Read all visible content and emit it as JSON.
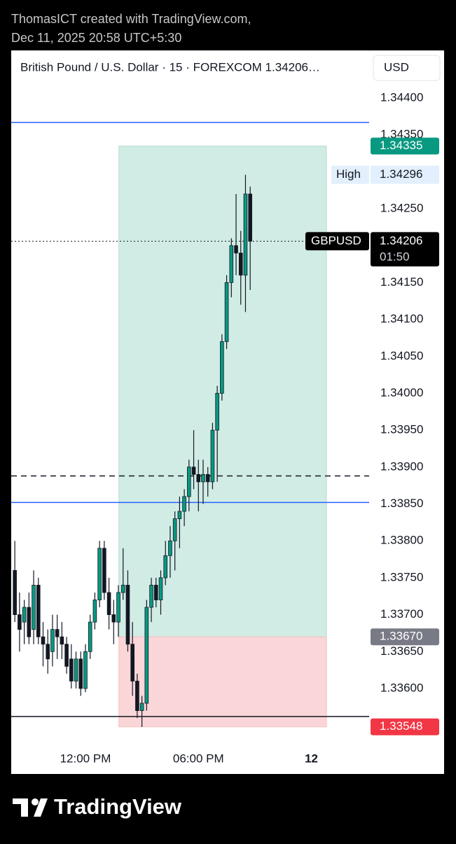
{
  "header": {
    "author_line": "ThomasICT created with TradingView.com,",
    "date_line": "Dec 11, 2025 20:58 UTC+5:30"
  },
  "chart_data": {
    "type": "candlestick",
    "title": "British Pound / U.S. Dollar · 15 · FOREXCOM  1.34206…",
    "currency": "USD",
    "symbol": "GBPUSD",
    "countdown": "01:50",
    "high_text": "High",
    "up_color": "#089981",
    "down_color": "#131722",
    "open": [
      1.3376,
      1.337,
      1.3369,
      1.3371,
      1.3368,
      1.3374,
      1.3367,
      1.3366,
      1.3365,
      1.3368,
      1.3367,
      1.3366,
      1.3364,
      1.3361,
      1.3364,
      1.336,
      1.3365,
      1.3369,
      1.3372,
      1.3379,
      1.3373,
      1.337,
      1.3369,
      1.3373,
      1.3374,
      1.3366,
      1.3361,
      1.3357,
      1.3358,
      1.3371,
      1.3374,
      1.3372,
      1.3375,
      1.3378,
      1.338,
      1.3383,
      1.3384,
      1.3386,
      1.339,
      1.3389,
      1.3388,
      1.3389,
      1.3388,
      1.3395,
      1.34,
      1.3407,
      1.3415,
      1.342,
      1.3419,
      1.3416,
      1.3427
    ],
    "high": [
      1.338,
      1.3373,
      1.3372,
      1.3373,
      1.3376,
      1.3375,
      1.3369,
      1.3368,
      1.337,
      1.337,
      1.3369,
      1.3367,
      1.3366,
      1.3365,
      1.3365,
      1.3366,
      1.337,
      1.3373,
      1.338,
      1.338,
      1.3375,
      1.3372,
      1.3374,
      1.3379,
      1.3376,
      1.3369,
      1.3362,
      1.3359,
      1.3372,
      1.3375,
      1.3375,
      1.3376,
      1.338,
      1.3382,
      1.3384,
      1.3386,
      1.3387,
      1.3391,
      1.3395,
      1.3391,
      1.3391,
      1.339,
      1.3396,
      1.3401,
      1.3408,
      1.3416,
      1.3421,
      1.3427,
      1.3422,
      1.34296,
      1.3428
    ],
    "low": [
      1.3369,
      1.3365,
      1.3366,
      1.3366,
      1.3366,
      1.3366,
      1.3363,
      1.3362,
      1.3363,
      1.3364,
      1.3364,
      1.3362,
      1.336,
      1.336,
      1.3359,
      1.33595,
      1.3364,
      1.3368,
      1.3371,
      1.3372,
      1.3368,
      1.3366,
      1.3367,
      1.3372,
      1.3365,
      1.3359,
      1.3356,
      1.33548,
      1.3357,
      1.3369,
      1.3371,
      1.337,
      1.3374,
      1.3375,
      1.3376,
      1.3379,
      1.3382,
      1.3384,
      1.3387,
      1.3384,
      1.3385,
      1.3386,
      1.3387,
      1.3388,
      1.3399,
      1.3406,
      1.3413,
      1.3416,
      1.3412,
      1.3411,
      1.3414
    ],
    "close": [
      1.337,
      1.3368,
      1.3371,
      1.3367,
      1.3374,
      1.3367,
      1.3366,
      1.3364,
      1.3368,
      1.3367,
      1.3366,
      1.3363,
      1.3361,
      1.3364,
      1.336,
      1.3365,
      1.3369,
      1.3372,
      1.3379,
      1.3373,
      1.337,
      1.3369,
      1.3373,
      1.3374,
      1.3366,
      1.3361,
      1.3357,
      1.3358,
      1.3371,
      1.3374,
      1.3372,
      1.3375,
      1.3378,
      1.338,
      1.3383,
      1.3384,
      1.3386,
      1.339,
      1.3389,
      1.3388,
      1.3389,
      1.3388,
      1.3395,
      1.34,
      1.3407,
      1.3415,
      1.342,
      1.3419,
      1.3416,
      1.3427,
      1.34206
    ],
    "xlim": [
      -0.77,
      75.27
    ],
    "xticks": [
      {
        "value": 15,
        "label": "12:00 PM"
      },
      {
        "value": 39,
        "label": "06:00 PM"
      },
      {
        "value": 63,
        "label": "12"
      }
    ],
    "ylim": [
      1.33525,
      1.344645
    ],
    "yticks": [
      {
        "value": 1.336,
        "label": "1.33600"
      },
      {
        "value": 1.3365,
        "label": "1.33650"
      },
      {
        "value": 1.337,
        "label": "1.33700"
      },
      {
        "value": 1.3375,
        "label": "1.33750"
      },
      {
        "value": 1.338,
        "label": "1.33800"
      },
      {
        "value": 1.3385,
        "label": "1.33850"
      },
      {
        "value": 1.339,
        "label": "1.33900"
      },
      {
        "value": 1.3395,
        "label": "1.33950"
      },
      {
        "value": 1.34,
        "label": "1.34000"
      },
      {
        "value": 1.3405,
        "label": "1.34050"
      },
      {
        "value": 1.341,
        "label": "1.34100"
      },
      {
        "value": 1.3415,
        "label": "1.34150"
      },
      {
        "value": 1.342,
        "label": "1.34200"
      },
      {
        "value": 1.3425,
        "label": "1.34250"
      },
      {
        "value": 1.343,
        "label": "1.34300"
      },
      {
        "value": 1.3435,
        "label": "1.34350"
      },
      {
        "value": 1.344,
        "label": "1.34400"
      }
    ],
    "last_price": {
      "value": 1.34206,
      "label": "1.34206"
    },
    "high_price": {
      "value": 1.34296,
      "label": "1.34296"
    },
    "levels": [
      {
        "price": 1.34367,
        "color": "#2962ff",
        "style": "solid"
      },
      {
        "price": 1.33852,
        "color": "#2962ff",
        "style": "solid"
      },
      {
        "price": 1.33888,
        "color": "#131722",
        "style": "dashed"
      },
      {
        "price": 1.33562,
        "color": "#131722",
        "style": "solid"
      }
    ],
    "position": {
      "start": 22.1,
      "end": 66.2,
      "target": {
        "value": 1.34335,
        "label": "1.34335"
      },
      "entry": {
        "value": 1.3367,
        "label": "1.33670"
      },
      "stop": {
        "value": 1.33548,
        "label": "1.33548"
      },
      "profit_color": "#d1ece5",
      "loss_color": "#fad6d8",
      "target_label_color": "#089981",
      "entry_label_color": "#787b86",
      "stop_label_color": "#f23645"
    }
  },
  "footer": {
    "brand": "TradingView"
  }
}
